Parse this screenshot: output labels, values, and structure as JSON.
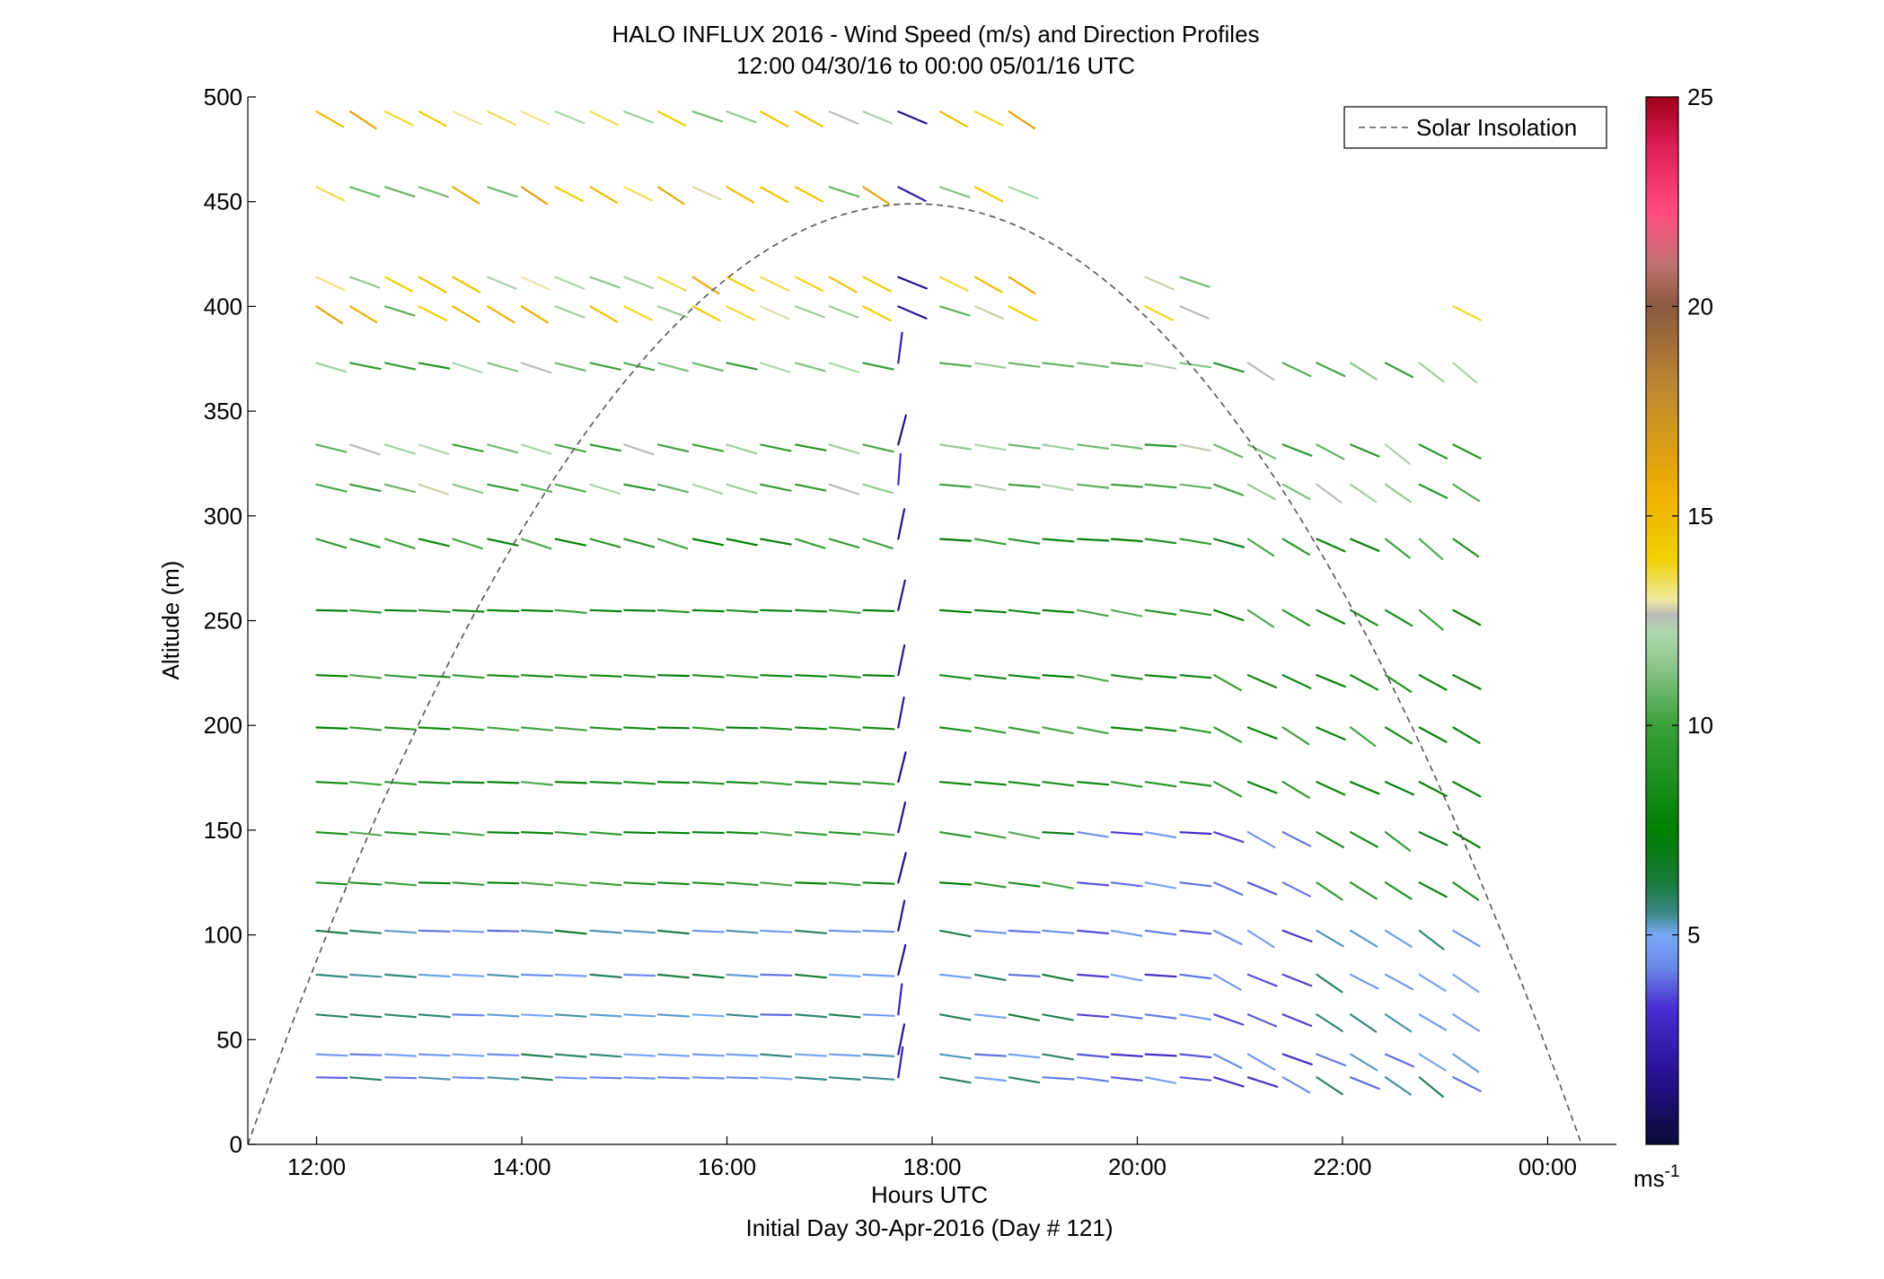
{
  "chart_data": {
    "type": "wind-barb-profile",
    "title": "HALO INFLUX 2016 - Wind Speed (m/s) and Direction Profiles",
    "subtitle": "12:00 04/30/16 to 00:00 05/01/16  UTC",
    "xlabel": "Hours UTC",
    "xlabel2": "Initial Day 30-Apr-2016 (Day # 121)",
    "ylabel": "Altitude (m)",
    "xlim": [
      11.33,
      24.67
    ],
    "ylim": [
      0,
      500
    ],
    "x_ticks": [
      {
        "value": 12,
        "label": "12:00"
      },
      {
        "value": 14,
        "label": "14:00"
      },
      {
        "value": 16,
        "label": "16:00"
      },
      {
        "value": 18,
        "label": "18:00"
      },
      {
        "value": 20,
        "label": "20:00"
      },
      {
        "value": 22,
        "label": "22:00"
      },
      {
        "value": 24,
        "label": "00:00"
      }
    ],
    "y_ticks": [
      0,
      50,
      100,
      150,
      200,
      250,
      300,
      350,
      400,
      450,
      500
    ],
    "legend": {
      "entry": "Solar Insolation",
      "placement": "top-right",
      "style": "dashed gray"
    },
    "colorbar": {
      "label": "ms",
      "label_exponent": "-1",
      "range": [
        0,
        25
      ],
      "ticks": [
        5,
        10,
        15,
        20,
        25
      ]
    },
    "solar_insolation": {
      "start_hour": 11.33,
      "end_hour": 24.33,
      "peak_hour": 17.83,
      "peak_altitude": 449
    },
    "altitudes": [
      32,
      43,
      62,
      81,
      102,
      125,
      149,
      173,
      199,
      224,
      255,
      289,
      315,
      334,
      373,
      400,
      414,
      457,
      493
    ],
    "times": [
      12.0,
      12.33,
      12.67,
      13.0,
      13.33,
      13.67,
      14.0,
      14.33,
      14.67,
      15.0,
      15.33,
      15.67,
      16.0,
      16.33,
      16.67,
      17.0,
      17.33,
      17.67,
      18.08,
      18.42,
      18.75,
      19.08,
      19.42,
      19.75,
      20.08,
      20.42,
      20.75,
      21.08,
      21.42,
      21.75,
      22.08,
      22.42,
      22.75,
      23.08
    ]
  }
}
